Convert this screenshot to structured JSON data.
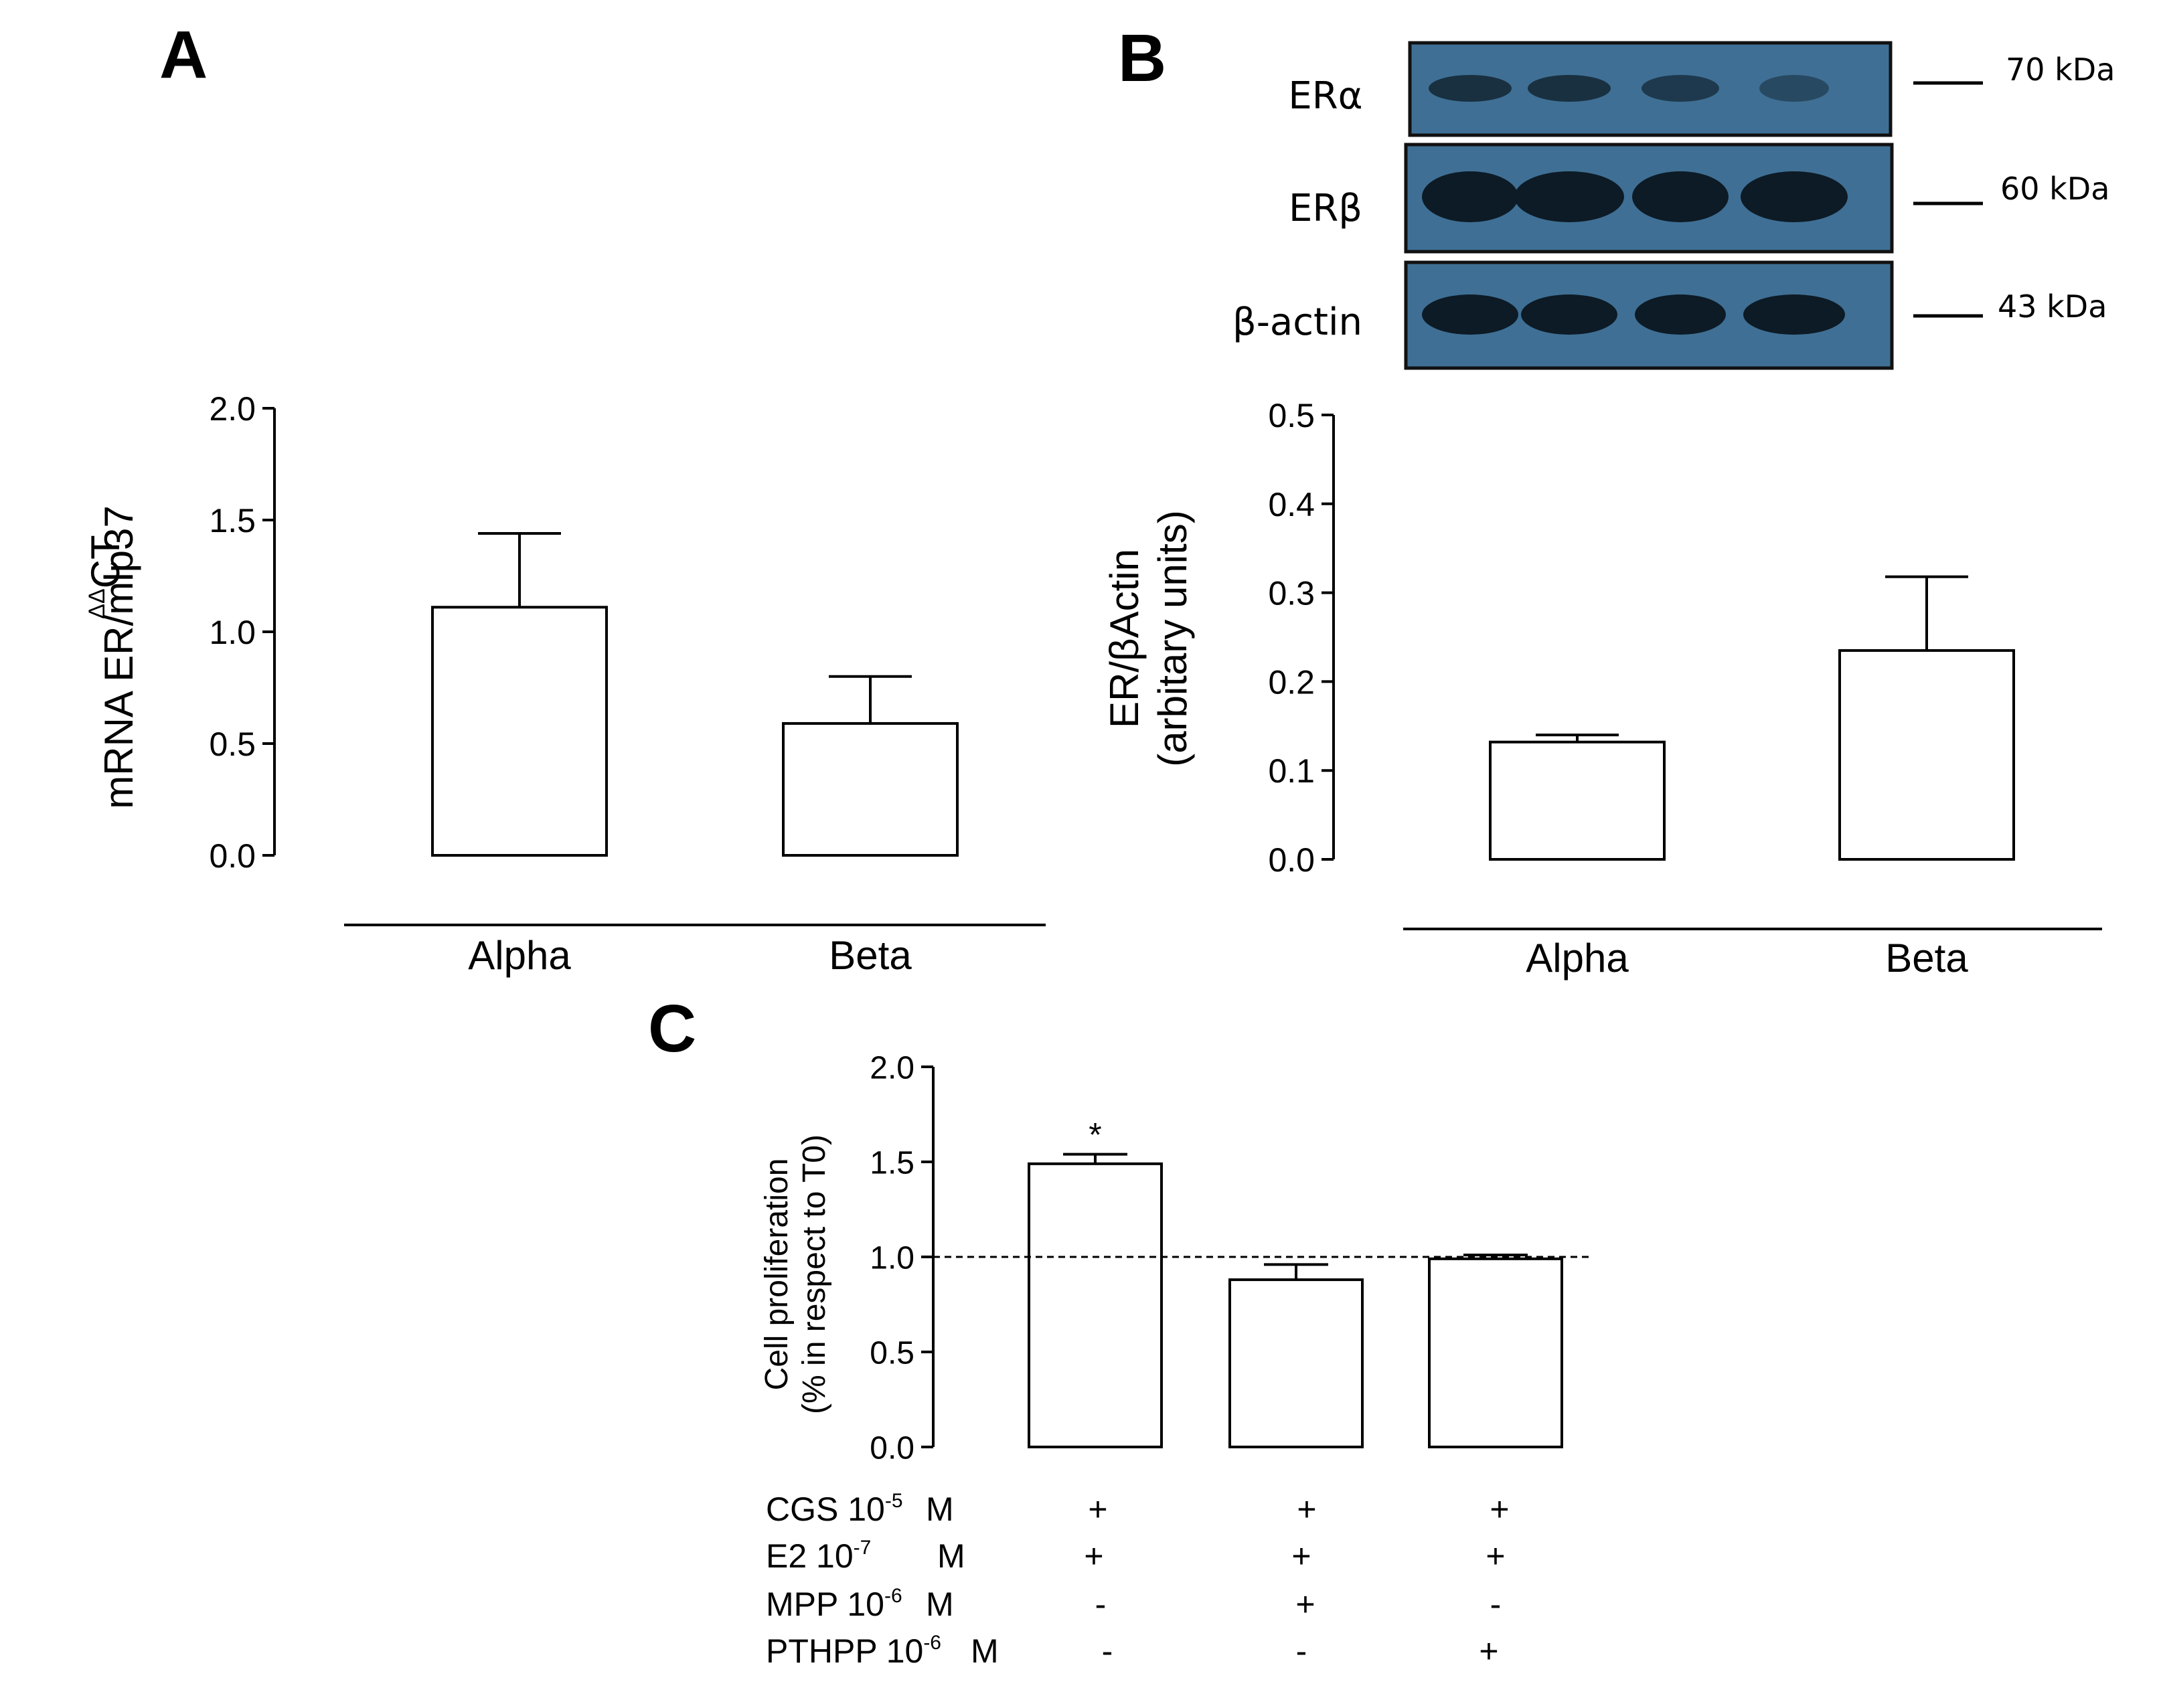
{
  "panels": {
    "A": {
      "letter": "A"
    },
    "B": {
      "letter": "B"
    },
    "C": {
      "letter": "C"
    }
  },
  "blot": {
    "rows": [
      {
        "label": "ERα",
        "marker": "70 kDa"
      },
      {
        "label": "ERβ",
        "marker": "60 kDa"
      },
      {
        "label": "β-actin",
        "marker": "43 kDa"
      }
    ],
    "colors": {
      "background": "#3f6f94",
      "band": "#0d1b26"
    }
  },
  "chart_data": [
    {
      "panel": "A",
      "type": "bar",
      "categories": [
        "Alpha",
        "Beta"
      ],
      "values": [
        1.11,
        0.59
      ],
      "errors": [
        0.33,
        0.21
      ],
      "ylabel_sup": "ΔΔ",
      "ylabel_main": "CT",
      "ylabel_line2": "mRNA ER/mlp37",
      "ylim": [
        0,
        2.0
      ],
      "yticks": [
        "0.0",
        "0.5",
        "1.0",
        "1.5",
        "2.0"
      ],
      "ytick_values": [
        0,
        0.5,
        1.0,
        1.5,
        2.0
      ]
    },
    {
      "panel": "B",
      "type": "bar",
      "categories": [
        "Alpha",
        "Beta"
      ],
      "values": [
        0.132,
        0.235
      ],
      "errors": [
        0.008,
        0.083
      ],
      "ylabel_line1": "ER/βActin",
      "ylabel_line2": "(arbitary units)",
      "ylim": [
        0,
        0.5
      ],
      "yticks": [
        "0.0",
        "0.1",
        "0.2",
        "0.3",
        "0.4",
        "0.5"
      ],
      "ytick_values": [
        0,
        0.1,
        0.2,
        0.3,
        0.4,
        0.5
      ]
    },
    {
      "panel": "C",
      "type": "bar",
      "values": [
        1.49,
        0.88,
        0.99
      ],
      "errors": [
        0.05,
        0.08,
        0.02
      ],
      "significance": [
        "*",
        "",
        ""
      ],
      "reference_line": 1.0,
      "ylabel_line1": "Cell proliferation",
      "ylabel_line2": "(% in respect to T0)",
      "ylim": [
        0,
        2.0
      ],
      "yticks": [
        "0.0",
        "0.5",
        "1.0",
        "1.5",
        "2.0"
      ],
      "ytick_values": [
        0,
        0.5,
        1.0,
        1.5,
        2.0
      ],
      "treatments": [
        {
          "name": "CGS 10",
          "exp": "-5",
          "unit": "M",
          "signs": [
            "+",
            "+",
            "+"
          ]
        },
        {
          "name": "E2 10",
          "exp": "-7",
          "unit": "M",
          "signs": [
            "+",
            "+",
            "+"
          ]
        },
        {
          "name": "MPP 10",
          "exp": "-6",
          "unit": "M",
          "signs": [
            "-",
            "+",
            "-"
          ]
        },
        {
          "name": "PTHPP 10",
          "exp": "-6",
          "unit": "M",
          "signs": [
            "-",
            "-",
            "+"
          ]
        }
      ]
    }
  ]
}
